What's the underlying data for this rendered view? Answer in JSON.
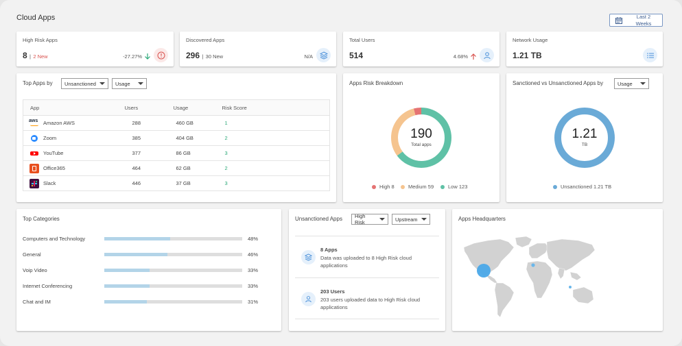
{
  "page": {
    "title": "Cloud Apps",
    "date_range": "Last 2 Weeks"
  },
  "kpis": [
    {
      "title": "High Risk Apps",
      "value": "8",
      "sub": "2 New",
      "change": "-27.27%",
      "trend": "down",
      "icon": "alert-circle-icon"
    },
    {
      "title": "Discovered Apps",
      "value": "296",
      "sub": "30 New",
      "change": "N/A",
      "icon": "layers-icon"
    },
    {
      "title": "Total Users",
      "value": "514",
      "change": "4.68%",
      "trend": "up",
      "icon": "user-icon"
    },
    {
      "title": "Network Usage",
      "value": "1.21 TB",
      "icon": "list-icon"
    }
  ],
  "top_apps": {
    "title": "Top Apps by",
    "filter1": "Unsanctioned",
    "filter2": "Usage",
    "columns": [
      "App",
      "Users",
      "Usage",
      "Risk Score"
    ],
    "rows": [
      {
        "app": "Amazon AWS",
        "users": "288",
        "usage": "460 GB",
        "risk": "1",
        "logo": "aws-logo"
      },
      {
        "app": "Zoom",
        "users": "385",
        "usage": "404 GB",
        "risk": "2",
        "logo": "zoom-logo"
      },
      {
        "app": "YouTube",
        "users": "377",
        "usage": "86 GB",
        "risk": "3",
        "logo": "youtube-logo"
      },
      {
        "app": "Office365",
        "users": "464",
        "usage": "62 GB",
        "risk": "2",
        "logo": "office365-logo"
      },
      {
        "app": "Slack",
        "users": "446",
        "usage": "37 GB",
        "risk": "3",
        "logo": "slack-logo"
      }
    ]
  },
  "risk_breakdown": {
    "title": "Apps Risk Breakdown",
    "total": "190",
    "total_label": "Total apps",
    "legend": [
      {
        "label": "High",
        "value": "8",
        "color": "#e57373"
      },
      {
        "label": "Medium",
        "value": "59",
        "color": "#f5c48f"
      },
      {
        "label": "Low",
        "value": "123",
        "color": "#5fc1a6"
      }
    ]
  },
  "sanctioned": {
    "title": "Sanctioned vs Unsanctioned Apps by",
    "filter": "Usage",
    "total": "1.21",
    "unit": "TB",
    "legend": [
      {
        "label": "Unsanctioned",
        "value": "1.21 TB",
        "color": "#6aaad7"
      }
    ]
  },
  "categories": {
    "title": "Top Categories",
    "items": [
      {
        "label": "Computers and Technology",
        "pct": "48%",
        "value": 0.48
      },
      {
        "label": "General",
        "pct": "46%",
        "value": 0.46
      },
      {
        "label": "Voip Video",
        "pct": "33%",
        "value": 0.33
      },
      {
        "label": "Internet Conferencing",
        "pct": "33%",
        "value": 0.33
      },
      {
        "label": "Chat and IM",
        "pct": "31%",
        "value": 0.31
      }
    ]
  },
  "unsanctioned": {
    "title": "Unsanctioned Apps",
    "filter1": "High Risk",
    "filter2": "Upstream",
    "items": [
      {
        "title": "8 Apps",
        "text": "Data was uploaded to 8 High Risk cloud applications",
        "icon": "layers-icon"
      },
      {
        "title": "203 Users",
        "text": "203 users uploaded data to High Risk cloud applications",
        "icon": "user-icon"
      }
    ]
  },
  "headquarters": {
    "title": "Apps Headquarters"
  }
}
